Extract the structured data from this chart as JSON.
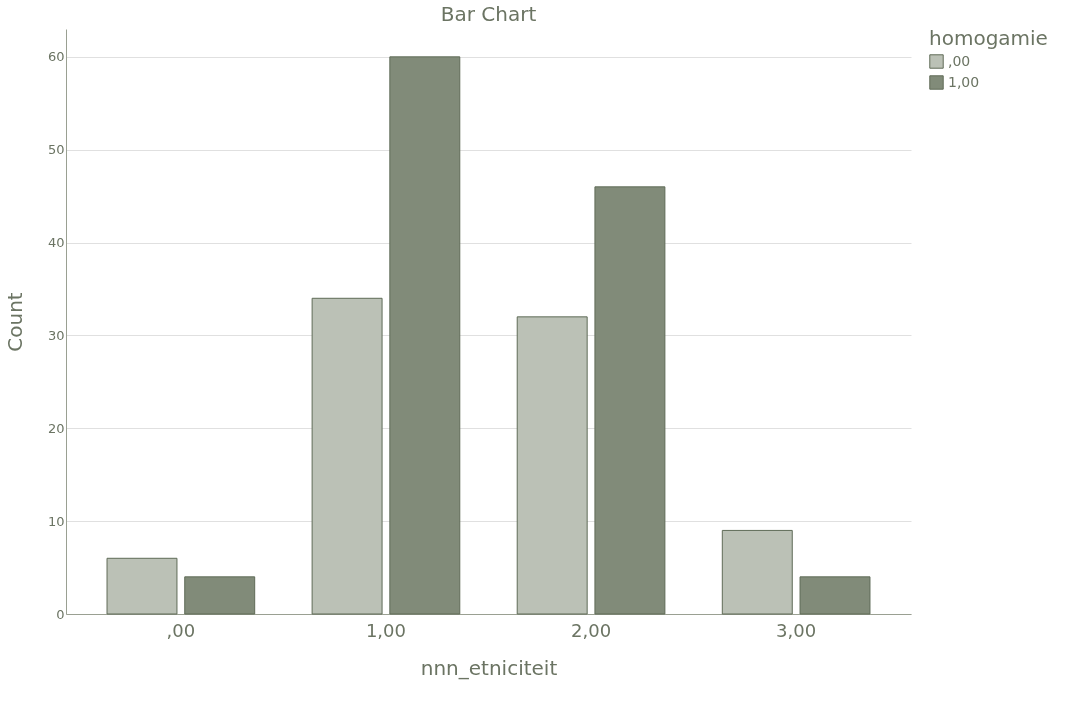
{
  "chart_data": {
    "type": "bar",
    "title": "Bar Chart",
    "xlabel": "nnn_etniciteit",
    "ylabel": "Count",
    "legend_title": "homogamie",
    "legend": "top right",
    "categories": [
      ",00",
      "1,00",
      "2,00",
      "3,00"
    ],
    "series": [
      {
        "name": ",00",
        "color": "#bbc1b6",
        "values": [
          6,
          34,
          32,
          9
        ]
      },
      {
        "name": "1,00",
        "color": "#818b79",
        "values": [
          4,
          60,
          46,
          4
        ]
      }
    ],
    "ylim": [
      0,
      63
    ],
    "yticks": [
      0,
      10,
      20,
      30,
      40,
      50,
      60
    ],
    "grid": "y"
  }
}
